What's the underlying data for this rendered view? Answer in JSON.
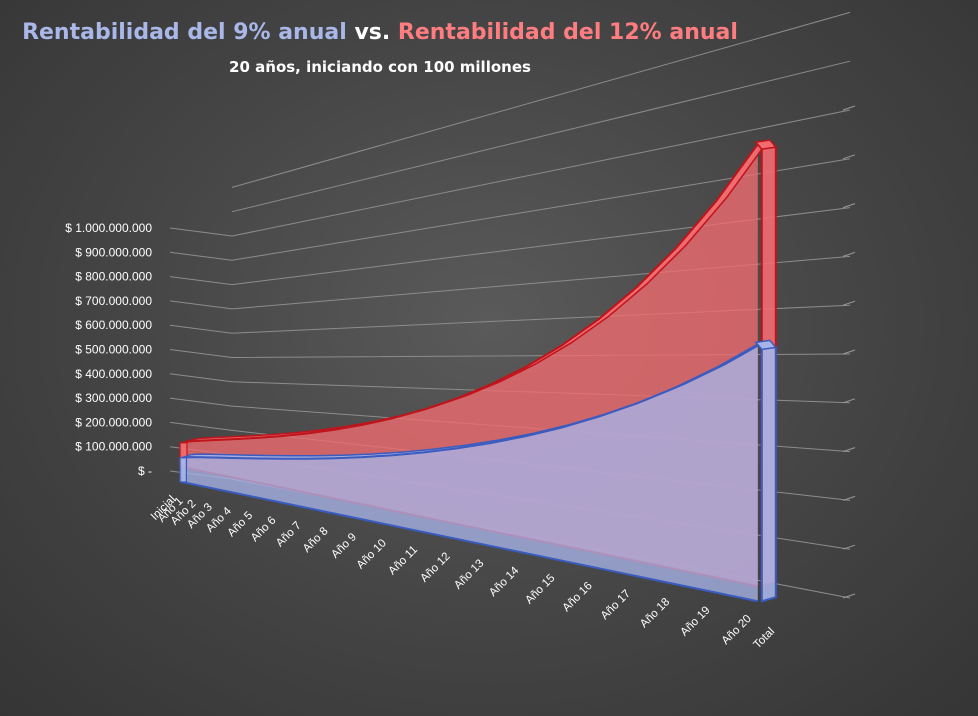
{
  "chart_data": {
    "type": "area",
    "title_part1": "Rentabilidad del 9% anual",
    "title_vs": "vs.",
    "title_part2": "Rentabilidad del 12% anual",
    "subtitle": "20 años, iniciando con 100 millones",
    "categories": [
      "Inicial",
      "Año 1",
      "Año 2",
      "Año 3",
      "Año 4",
      "Año 5",
      "Año 6",
      "Año 7",
      "Año 8",
      "Año 9",
      "Año 10",
      "Año 11",
      "Año 12",
      "Año 13",
      "Año 14",
      "Año 15",
      "Año 16",
      "Año 17",
      "Año 18",
      "Año 19",
      "Año 20",
      "Total"
    ],
    "y_tick_labels": [
      "$ -",
      "$ 100.000.000",
      "$ 200.000.000",
      "$ 300.000.000",
      "$ 400.000.000",
      "$ 500.000.000",
      "$ 600.000.000",
      "$ 700.000.000",
      "$ 800.000.000",
      "$ 900.000.000",
      "$ 1.000.000.000"
    ],
    "ylim": [
      0,
      1000000000
    ],
    "series": [
      {
        "name": "Rentabilidad del 9% anual",
        "color": "#a7b4e8",
        "values": [
          100000000,
          109000000,
          118810000,
          129502900,
          141158161,
          153862395,
          167710011,
          182803912,
          199256264,
          217189328,
          236736367,
          258042640,
          281266478,
          306580461,
          334172703,
          364248246,
          397030588,
          432763341,
          471712042,
          514166125,
          560441077,
          560441077
        ]
      },
      {
        "name": "Rentabilidad del 12% anual",
        "color": "#f26c70",
        "values": [
          100000000,
          112000000,
          125440000,
          140492800,
          157351936,
          176234168,
          197382269,
          221068141,
          247596318,
          277307876,
          310584821,
          347855000,
          389597600,
          436349312,
          488711229,
          547356576,
          613039365,
          686604089,
          768996580,
          861276169,
          964629309,
          964629309
        ]
      }
    ]
  }
}
